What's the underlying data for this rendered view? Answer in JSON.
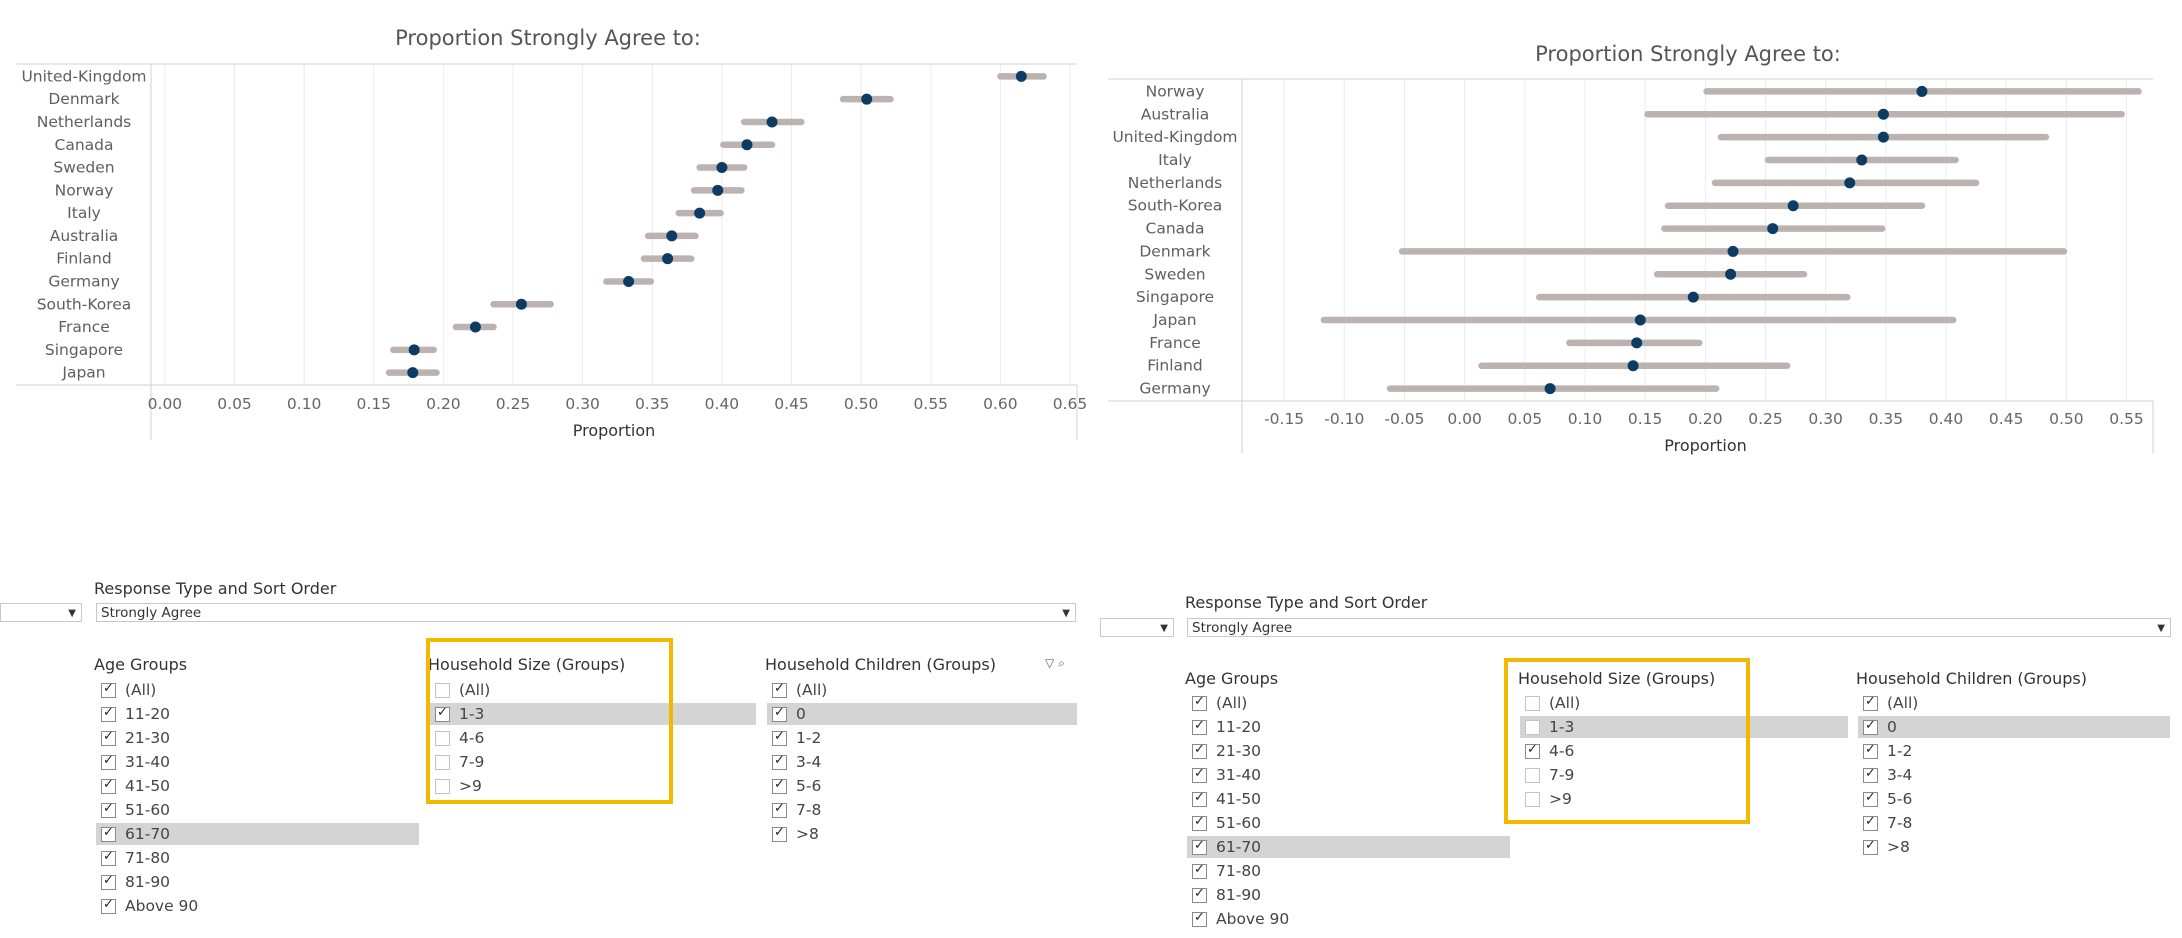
{
  "panels": [
    {
      "id": "left",
      "chart_data": {
        "type": "scatter",
        "title": "Proportion Strongly Agree to:",
        "xlabel": "Proportion",
        "ylabel": "",
        "xlim": [
          -0.01,
          0.655
        ],
        "ticks": [
          0.0,
          0.05,
          0.1,
          0.15,
          0.2,
          0.25,
          0.3,
          0.35,
          0.4,
          0.45,
          0.5,
          0.55,
          0.6,
          0.65
        ],
        "tick_labels": [
          "0.00",
          "0.05",
          "0.10",
          "0.15",
          "0.20",
          "0.25",
          "0.30",
          "0.35",
          "0.40",
          "0.45",
          "0.50",
          "0.55",
          "0.60",
          "0.65"
        ],
        "categories": [
          "United-Kingdom",
          "Denmark",
          "Netherlands",
          "Canada",
          "Sweden",
          "Norway",
          "Italy",
          "Australia",
          "Finland",
          "Germany",
          "South-Korea",
          "France",
          "Singapore",
          "Japan"
        ],
        "values": [
          0.615,
          0.504,
          0.436,
          0.418,
          0.4,
          0.397,
          0.384,
          0.364,
          0.361,
          0.333,
          0.256,
          0.223,
          0.179,
          0.178
        ],
        "ci_low": [
          0.6,
          0.487,
          0.416,
          0.401,
          0.384,
          0.38,
          0.369,
          0.347,
          0.344,
          0.317,
          0.236,
          0.209,
          0.164,
          0.161
        ],
        "ci_high": [
          0.631,
          0.521,
          0.457,
          0.436,
          0.416,
          0.414,
          0.399,
          0.381,
          0.378,
          0.349,
          0.277,
          0.236,
          0.193,
          0.195
        ],
        "grid": true
      },
      "filters": {
        "sort_label": "Response Type and Sort Order",
        "sort_value": "Strongly Agree",
        "age": {
          "title": "Age Groups",
          "items": [
            "(All)",
            "11-20",
            "21-30",
            "31-40",
            "41-50",
            "51-60",
            "61-70",
            "71-80",
            "81-90",
            "Above 90"
          ],
          "checked": [
            true,
            true,
            true,
            true,
            true,
            true,
            true,
            true,
            true,
            true
          ],
          "highlight": 6
        },
        "household": {
          "title": "Household Size (Groups)",
          "items": [
            "(All)",
            "1-3",
            "4-6",
            "7-9",
            ">9"
          ],
          "checked": [
            false,
            true,
            false,
            false,
            false
          ],
          "highlight": 1
        },
        "children": {
          "title": "Household Children (Groups)",
          "items": [
            "(All)",
            "0",
            "1-2",
            "3-4",
            "5-6",
            "7-8",
            ">8"
          ],
          "checked": [
            true,
            true,
            true,
            true,
            true,
            true,
            true
          ],
          "highlight": 1
        }
      }
    },
    {
      "id": "right",
      "chart_data": {
        "type": "scatter",
        "title": "Proportion Strongly Agree to:",
        "xlabel": "Proportion",
        "ylabel": "",
        "xlim": [
          -0.185,
          0.572
        ],
        "ticks": [
          -0.15,
          -0.1,
          -0.05,
          0.0,
          0.05,
          0.1,
          0.15,
          0.2,
          0.25,
          0.3,
          0.35,
          0.4,
          0.45,
          0.5,
          0.55
        ],
        "tick_labels": [
          "-0.15",
          "-0.10",
          "-0.05",
          "0.00",
          "0.05",
          "0.10",
          "0.15",
          "0.20",
          "0.25",
          "0.30",
          "0.35",
          "0.40",
          "0.45",
          "0.50",
          "0.55"
        ],
        "categories": [
          "Norway",
          "Australia",
          "United-Kingdom",
          "Italy",
          "Netherlands",
          "South-Korea",
          "Canada",
          "Denmark",
          "Sweden",
          "Singapore",
          "Japan",
          "France",
          "Finland",
          "Germany"
        ],
        "values": [
          0.38,
          0.348,
          0.348,
          0.33,
          0.32,
          0.273,
          0.256,
          0.223,
          0.221,
          0.19,
          0.146,
          0.143,
          0.14,
          0.071
        ],
        "ci_low": [
          0.201,
          0.152,
          0.213,
          0.252,
          0.208,
          0.169,
          0.166,
          -0.052,
          0.16,
          0.062,
          -0.117,
          0.087,
          0.014,
          -0.062
        ],
        "ci_high": [
          0.56,
          0.546,
          0.483,
          0.408,
          0.425,
          0.38,
          0.347,
          0.498,
          0.282,
          0.318,
          0.406,
          0.195,
          0.268,
          0.209
        ],
        "grid": true
      },
      "filters": {
        "sort_label": "Response Type and Sort Order",
        "sort_value": "Strongly Agree",
        "age": {
          "title": "Age Groups",
          "items": [
            "(All)",
            "11-20",
            "21-30",
            "31-40",
            "41-50",
            "51-60",
            "61-70",
            "71-80",
            "81-90",
            "Above 90"
          ],
          "checked": [
            true,
            true,
            true,
            true,
            true,
            true,
            true,
            true,
            true,
            true
          ],
          "highlight": 6
        },
        "household": {
          "title": "Household Size (Groups)",
          "items": [
            "(All)",
            "1-3",
            "4-6",
            "7-9",
            ">9"
          ],
          "checked": [
            false,
            false,
            true,
            false,
            false
          ],
          "highlight": 1
        },
        "children": {
          "title": "Household Children (Groups)",
          "items": [
            "(All)",
            "0",
            "1-2",
            "3-4",
            "5-6",
            "7-8",
            ">8"
          ],
          "checked": [
            true,
            true,
            true,
            true,
            true,
            true,
            true
          ],
          "highlight": 1
        }
      }
    }
  ],
  "colors": {
    "dot": "#0c3c63",
    "ci_bar": "#bcb3b0",
    "grid": "#ececec",
    "axis": "#d0d0d0",
    "highlight_box": "#f5b800",
    "row_highlight": "#d4d4d4"
  },
  "icons": [
    "filter-icon",
    "search-icon",
    "dropdown-arrow-icon",
    "checkbox-icon"
  ]
}
